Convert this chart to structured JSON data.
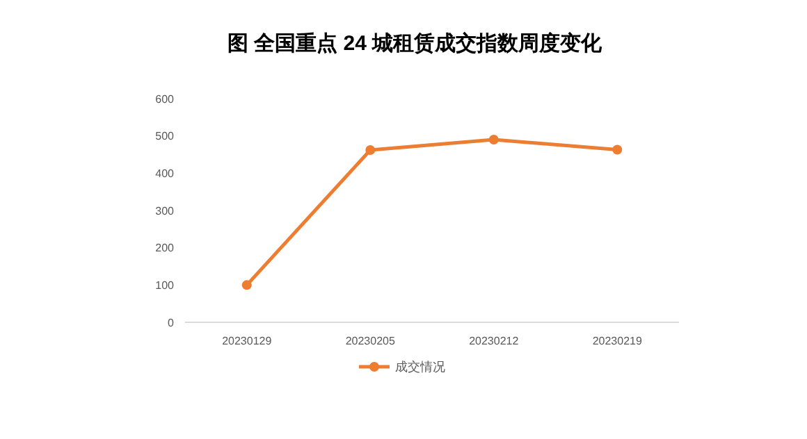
{
  "chart_data": {
    "type": "line",
    "title": "图  全国重点 24 城租赁成交指数周度变化",
    "categories": [
      "20230129",
      "20230205",
      "20230212",
      "20230219"
    ],
    "series": [
      {
        "name": "成交情况",
        "color": "#ed7d31",
        "values": [
          100,
          462,
          490,
          463
        ]
      }
    ],
    "ylim": [
      0,
      600
    ],
    "yticks": [
      0,
      100,
      200,
      300,
      400,
      500,
      600
    ],
    "grid": false,
    "legend": "bottom",
    "marker": "circle"
  }
}
